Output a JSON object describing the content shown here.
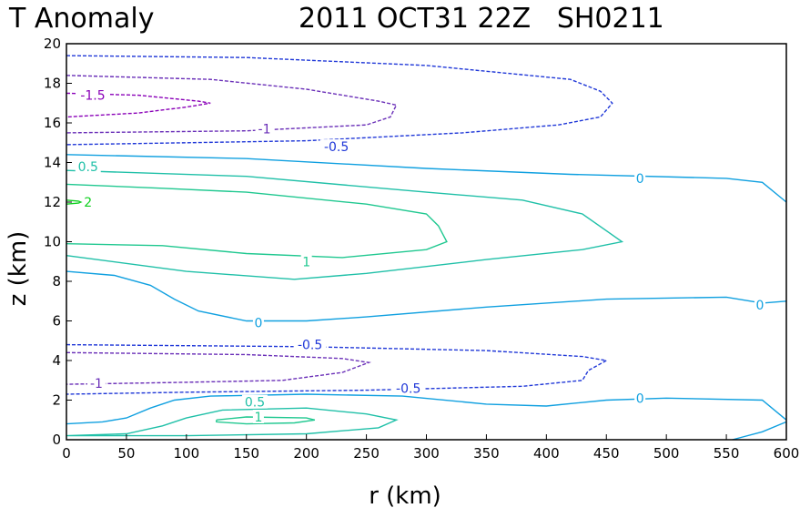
{
  "chart_data": {
    "type": "contour",
    "title_left": "T Anomaly",
    "title_right": "2011 OCT31 22Z   SH0211",
    "xlabel": "r (km)",
    "ylabel": "z (km)",
    "xlim": [
      0,
      600
    ],
    "ylim": [
      0,
      20
    ],
    "xticks": [
      0,
      50,
      100,
      150,
      200,
      250,
      300,
      350,
      400,
      450,
      500,
      550,
      600
    ],
    "yticks": [
      0,
      2,
      4,
      6,
      8,
      10,
      12,
      14,
      16,
      18,
      20
    ],
    "colors": {
      "neg_1_5": "#8a00b8",
      "neg_1": "#6a2fb8",
      "neg_0_5": "#2038d8",
      "zero": "#10a0e0",
      "pos_0_5": "#20c0a8",
      "pos_1": "#20c890",
      "pos_2": "#10d020"
    },
    "contours": [
      {
        "level": "-0.5",
        "color_key": "neg_0_5",
        "dashed": true,
        "points": [
          [
            0,
            19.4
          ],
          [
            150,
            19.3
          ],
          [
            300,
            18.9
          ],
          [
            420,
            18.2
          ],
          [
            445,
            17.6
          ],
          [
            455,
            17.0
          ],
          [
            445,
            16.3
          ],
          [
            410,
            15.9
          ],
          [
            330,
            15.5
          ],
          [
            200,
            15.1
          ],
          [
            100,
            15.0
          ],
          [
            0,
            14.9
          ]
        ]
      },
      {
        "level": "-1",
        "color_key": "neg_1",
        "dashed": true,
        "points": [
          [
            0,
            18.4
          ],
          [
            120,
            18.2
          ],
          [
            200,
            17.7
          ],
          [
            260,
            17.1
          ],
          [
            275,
            16.9
          ],
          [
            270,
            16.3
          ],
          [
            250,
            15.9
          ],
          [
            150,
            15.6
          ],
          [
            0,
            15.5
          ]
        ]
      },
      {
        "level": "-1.5",
        "color_key": "neg_1_5",
        "dashed": true,
        "points": [
          [
            0,
            17.5
          ],
          [
            60,
            17.4
          ],
          [
            110,
            17.1
          ],
          [
            120,
            17.0
          ],
          [
            100,
            16.8
          ],
          [
            60,
            16.5
          ],
          [
            0,
            16.3
          ]
        ]
      },
      {
        "level": "0",
        "color_key": "zero",
        "dashed": false,
        "points": [
          [
            0,
            14.4
          ],
          [
            150,
            14.2
          ],
          [
            300,
            13.7
          ],
          [
            420,
            13.4
          ],
          [
            550,
            13.2
          ],
          [
            580,
            13.0
          ],
          [
            600,
            12.0
          ]
        ]
      },
      {
        "level": "0.5",
        "color_key": "pos_0_5",
        "dashed": false,
        "points": [
          [
            0,
            13.6
          ],
          [
            150,
            13.3
          ],
          [
            300,
            12.5
          ],
          [
            380,
            12.1
          ],
          [
            430,
            11.4
          ],
          [
            463,
            10.0
          ],
          [
            430,
            9.6
          ],
          [
            350,
            9.1
          ],
          [
            250,
            8.4
          ],
          [
            190,
            8.1
          ],
          [
            100,
            8.5
          ],
          [
            0,
            9.3
          ]
        ]
      },
      {
        "level": "1",
        "color_key": "pos_1",
        "dashed": false,
        "points": [
          [
            0,
            12.9
          ],
          [
            80,
            12.7
          ],
          [
            150,
            12.5
          ],
          [
            250,
            11.9
          ],
          [
            300,
            11.4
          ],
          [
            310,
            10.8
          ],
          [
            317,
            10.0
          ],
          [
            300,
            9.6
          ],
          [
            230,
            9.2
          ],
          [
            150,
            9.4
          ],
          [
            80,
            9.8
          ],
          [
            0,
            9.9
          ]
        ]
      },
      {
        "level": "2",
        "color_key": "pos_2",
        "dashed": false,
        "points": [
          [
            0,
            12.1
          ],
          [
            10,
            12.05
          ],
          [
            12,
            12.0
          ],
          [
            10,
            11.95
          ],
          [
            0,
            11.9
          ]
        ]
      },
      {
        "level": "0",
        "color_key": "zero",
        "dashed": false,
        "points": [
          [
            0,
            8.5
          ],
          [
            40,
            8.3
          ],
          [
            70,
            7.8
          ],
          [
            90,
            7.1
          ],
          [
            110,
            6.5
          ],
          [
            150,
            6.0
          ],
          [
            200,
            6.0
          ],
          [
            250,
            6.2
          ],
          [
            350,
            6.7
          ],
          [
            450,
            7.1
          ],
          [
            550,
            7.2
          ],
          [
            580,
            6.9
          ],
          [
            600,
            7.0
          ]
        ]
      },
      {
        "level": "-0.5",
        "color_key": "neg_0_5",
        "dashed": true,
        "points": [
          [
            0,
            4.8
          ],
          [
            200,
            4.7
          ],
          [
            350,
            4.5
          ],
          [
            430,
            4.2
          ],
          [
            450,
            4.0
          ],
          [
            435,
            3.5
          ],
          [
            430,
            3.0
          ],
          [
            380,
            2.7
          ],
          [
            250,
            2.5
          ],
          [
            100,
            2.4
          ],
          [
            0,
            2.3
          ]
        ]
      },
      {
        "level": "-1",
        "color_key": "neg_1",
        "dashed": true,
        "points": [
          [
            0,
            4.4
          ],
          [
            150,
            4.3
          ],
          [
            230,
            4.1
          ],
          [
            252,
            3.9
          ],
          [
            230,
            3.4
          ],
          [
            180,
            3.0
          ],
          [
            100,
            2.9
          ],
          [
            0,
            2.8
          ]
        ]
      },
      {
        "level": "0",
        "color_key": "zero",
        "dashed": false,
        "points": [
          [
            0,
            0.8
          ],
          [
            30,
            0.9
          ],
          [
            50,
            1.1
          ],
          [
            70,
            1.6
          ],
          [
            90,
            2.0
          ],
          [
            120,
            2.2
          ],
          [
            200,
            2.3
          ],
          [
            280,
            2.2
          ],
          [
            350,
            1.8
          ],
          [
            400,
            1.7
          ],
          [
            450,
            2.0
          ],
          [
            500,
            2.1
          ],
          [
            580,
            2.0
          ],
          [
            600,
            1.0
          ]
        ]
      },
      {
        "level": "0.5",
        "color_key": "pos_0_5",
        "dashed": false,
        "points": [
          [
            0,
            0.2
          ],
          [
            50,
            0.3
          ],
          [
            80,
            0.7
          ],
          [
            100,
            1.1
          ],
          [
            130,
            1.5
          ],
          [
            200,
            1.6
          ],
          [
            250,
            1.3
          ],
          [
            275,
            1.0
          ],
          [
            260,
            0.6
          ],
          [
            200,
            0.3
          ],
          [
            100,
            0.2
          ],
          [
            0,
            0.2
          ]
        ]
      },
      {
        "level": "1",
        "color_key": "pos_1",
        "dashed": false,
        "points": [
          [
            125,
            1.0
          ],
          [
            150,
            1.15
          ],
          [
            200,
            1.1
          ],
          [
            207,
            1.0
          ],
          [
            190,
            0.85
          ],
          [
            150,
            0.8
          ],
          [
            125,
            0.9
          ],
          [
            125,
            1.0
          ]
        ]
      },
      {
        "level": "0",
        "color_key": "zero",
        "dashed": false,
        "points": [
          [
            555,
            0.0
          ],
          [
            580,
            0.4
          ],
          [
            600,
            0.9
          ]
        ]
      }
    ],
    "contour_labels": [
      {
        "text": "-1.5",
        "r": 22,
        "z": 17.4,
        "color_key": "neg_1_5"
      },
      {
        "text": "-1",
        "r": 165,
        "z": 15.7,
        "color_key": "neg_1"
      },
      {
        "text": "-0.5",
        "r": 225,
        "z": 14.8,
        "color_key": "neg_0_5"
      },
      {
        "text": "0.5",
        "r": 18,
        "z": 13.8,
        "color_key": "pos_0_5"
      },
      {
        "text": "0",
        "r": 478,
        "z": 13.2,
        "color_key": "zero"
      },
      {
        "text": "2",
        "r": 18,
        "z": 12.0,
        "color_key": "pos_2"
      },
      {
        "text": "1",
        "r": 200,
        "z": 9.0,
        "color_key": "pos_1"
      },
      {
        "text": "0",
        "r": 160,
        "z": 5.9,
        "color_key": "zero"
      },
      {
        "text": "0",
        "r": 578,
        "z": 6.8,
        "color_key": "zero"
      },
      {
        "text": "-0.5",
        "r": 203,
        "z": 4.8,
        "color_key": "neg_0_5"
      },
      {
        "text": "-1",
        "r": 25,
        "z": 2.85,
        "color_key": "neg_1"
      },
      {
        "text": "-0.5",
        "r": 285,
        "z": 2.6,
        "color_key": "neg_0_5"
      },
      {
        "text": "0.5",
        "r": 157,
        "z": 1.9,
        "color_key": "pos_0_5"
      },
      {
        "text": "0",
        "r": 478,
        "z": 2.1,
        "color_key": "zero"
      },
      {
        "text": "1",
        "r": 160,
        "z": 1.15,
        "color_key": "pos_1"
      }
    ]
  }
}
